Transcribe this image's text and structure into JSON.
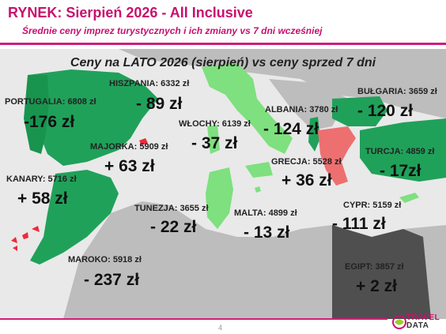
{
  "header": {
    "title": "RYNEK: Sierpień 2026 - All Inclusive",
    "subtitle": "Średnie ceny imprez turystycznych i ich zmiany vs 7 dni wcześniej"
  },
  "map_title": "Ceny na LATO 2026 (sierpień) vs ceny sprzed 7 dni",
  "colors": {
    "decrease": "#20a15a",
    "decrease_light": "#7ee07e",
    "increase": "#ee6f6f",
    "base_land": "#bdbdbd",
    "sea": "#e9e9e9",
    "accent": "#c8106e"
  },
  "countries": [
    {
      "id": "portugalia",
      "label": "PORTUGALIA: 6808 zł",
      "change": "-176 zł"
    },
    {
      "id": "hiszpania",
      "label": "HISZPANIA: 6332 zł",
      "change": "- 89 zł"
    },
    {
      "id": "majorka",
      "label": "MAJORKA: 5909 zł",
      "change": "+ 63 zł"
    },
    {
      "id": "kanary",
      "label": "KANARY: 5716 zł",
      "change": "+ 58 zł"
    },
    {
      "id": "maroko",
      "label": "MAROKO: 5918 zł",
      "change": "- 237 zł"
    },
    {
      "id": "wlochy",
      "label": "WŁOCHY: 6139 zł",
      "change": "- 37 zł"
    },
    {
      "id": "tunezja",
      "label": "TUNEZJA: 3655 zł",
      "change": "- 22 zł"
    },
    {
      "id": "malta",
      "label": "MALTA: 4899 zł",
      "change": "- 13 zł"
    },
    {
      "id": "albania",
      "label": "ALBANIA: 3780 zł",
      "change": "- 124 zł"
    },
    {
      "id": "grecja",
      "label": "GRECJA: 5528 zł",
      "change": "+ 36 zł"
    },
    {
      "id": "bulgaria",
      "label": "BUŁGARIA: 3659 zł",
      "change": "- 120 zł"
    },
    {
      "id": "turcja",
      "label": "TURCJA: 4859 zł",
      "change": "- 17zł"
    },
    {
      "id": "cypr",
      "label": "CYPR: 5159 zł",
      "change": "- 111 zł"
    },
    {
      "id": "egipt",
      "label": "EGIPT: 3857 zł",
      "change": "+ 2 zł"
    }
  ],
  "footer": {
    "page": "4",
    "logo_line1": "TRAVEL",
    "logo_line2": "DATA"
  }
}
